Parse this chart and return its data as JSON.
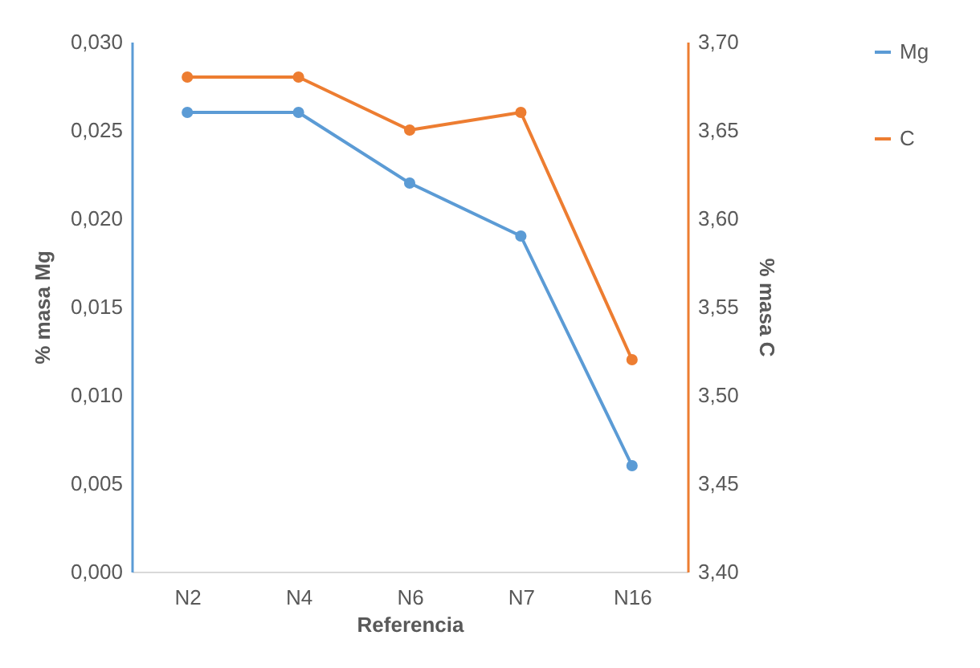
{
  "chart_data": {
    "type": "line",
    "xlabel": "Referencia",
    "ylabel": "% masa Mg",
    "y2label": "% masa C",
    "categories": [
      "N2",
      "N4",
      "N6",
      "N7",
      "N16"
    ],
    "series": [
      {
        "name": "Mg",
        "color": "#5b9bd5",
        "values": [
          0.026,
          0.026,
          0.022,
          0.019,
          0.006
        ]
      },
      {
        "name": "C",
        "color": "#ed7d31",
        "values": [
          3.68,
          3.68,
          3.65,
          3.66,
          3.52
        ],
        "axis": "y2"
      }
    ],
    "ylim": [
      0,
      0.03
    ],
    "yticks": [
      {
        "value": 0,
        "label": "0,000"
      },
      {
        "value": 0.005,
        "label": "0,005"
      },
      {
        "value": 0.01,
        "label": "0,010"
      },
      {
        "value": 0.015,
        "label": "0,015"
      },
      {
        "value": 0.02,
        "label": "0,020"
      },
      {
        "value": 0.025,
        "label": "0,025"
      },
      {
        "value": 0.03,
        "label": "0,030"
      }
    ],
    "y2lim": [
      3.4,
      3.7
    ],
    "y2ticks": [
      {
        "value": 3.4,
        "label": "3,40"
      },
      {
        "value": 3.45,
        "label": "3,45"
      },
      {
        "value": 3.5,
        "label": "3,50"
      },
      {
        "value": 3.55,
        "label": "3,55"
      },
      {
        "value": 3.6,
        "label": "3,60"
      },
      {
        "value": 3.65,
        "label": "3,65"
      },
      {
        "value": 3.7,
        "label": "3,70"
      }
    ],
    "marker": "circle",
    "line_style": "solid",
    "grid": false,
    "legend": "right"
  }
}
